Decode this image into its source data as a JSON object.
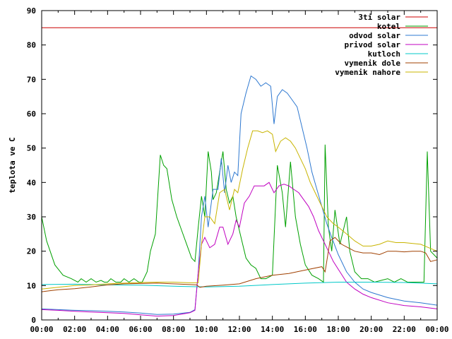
{
  "chart_data": {
    "type": "line",
    "title": "",
    "xlabel": "",
    "ylabel": "teplota ve C",
    "xlim": [
      0,
      24
    ],
    "ylim": [
      0,
      90
    ],
    "grid": false,
    "legend_position": "top-right",
    "x_tick_labels": [
      "00:00",
      "02:00",
      "04:00",
      "06:00",
      "08:00",
      "10:00",
      "12:00",
      "14:00",
      "16:00",
      "18:00",
      "20:00",
      "22:00",
      "00:00"
    ],
    "y_tick_labels": [
      "0",
      "10",
      "20",
      "30",
      "40",
      "50",
      "60",
      "70",
      "80",
      "90"
    ],
    "series": [
      {
        "name": "3ti solar",
        "color": "#cc0000",
        "points": [
          [
            0,
            85
          ],
          [
            24,
            85
          ]
        ]
      },
      {
        "name": "kotel",
        "color": "#00a000",
        "points": [
          [
            0,
            30
          ],
          [
            0.3,
            23
          ],
          [
            0.8,
            16
          ],
          [
            1.3,
            13
          ],
          [
            1.8,
            12
          ],
          [
            2.2,
            11
          ],
          [
            2.4,
            12
          ],
          [
            2.7,
            11
          ],
          [
            3,
            12
          ],
          [
            3.3,
            11
          ],
          [
            3.6,
            11.5
          ],
          [
            3.8,
            11
          ],
          [
            4.0,
            11
          ],
          [
            4.2,
            12
          ],
          [
            4.5,
            11
          ],
          [
            4.8,
            11
          ],
          [
            5.0,
            12
          ],
          [
            5.3,
            11
          ],
          [
            5.6,
            12
          ],
          [
            5.9,
            11
          ],
          [
            6.1,
            11
          ],
          [
            6.4,
            14
          ],
          [
            6.6,
            20
          ],
          [
            6.9,
            25
          ],
          [
            7.2,
            48
          ],
          [
            7.4,
            45
          ],
          [
            7.6,
            44
          ],
          [
            7.9,
            35
          ],
          [
            8.2,
            30
          ],
          [
            8.5,
            26
          ],
          [
            8.8,
            22
          ],
          [
            9.1,
            18
          ],
          [
            9.3,
            17
          ],
          [
            9.5,
            27
          ],
          [
            9.7,
            36
          ],
          [
            9.9,
            30
          ],
          [
            10.1,
            49
          ],
          [
            10.3,
            43
          ],
          [
            10.4,
            35
          ],
          [
            10.6,
            37
          ],
          [
            10.8,
            43
          ],
          [
            11.0,
            49
          ],
          [
            11.2,
            38
          ],
          [
            11.4,
            34
          ],
          [
            11.6,
            36
          ],
          [
            11.8,
            30
          ],
          [
            12.1,
            24
          ],
          [
            12.4,
            18
          ],
          [
            12.7,
            16
          ],
          [
            13.0,
            15
          ],
          [
            13.3,
            12
          ],
          [
            13.6,
            12
          ],
          [
            14.0,
            13
          ],
          [
            14.3,
            45
          ],
          [
            14.6,
            37
          ],
          [
            14.8,
            27
          ],
          [
            15.1,
            46
          ],
          [
            15.4,
            30
          ],
          [
            15.7,
            22
          ],
          [
            16.0,
            16
          ],
          [
            16.4,
            13
          ],
          [
            16.8,
            12
          ],
          [
            17.1,
            11
          ],
          [
            17.2,
            51
          ],
          [
            17.4,
            27
          ],
          [
            17.6,
            20
          ],
          [
            17.8,
            32
          ],
          [
            18.1,
            22
          ],
          [
            18.3,
            26
          ],
          [
            18.5,
            30
          ],
          [
            18.7,
            20
          ],
          [
            19.0,
            14
          ],
          [
            19.4,
            12
          ],
          [
            19.8,
            12
          ],
          [
            20.2,
            11
          ],
          [
            20.6,
            11.5
          ],
          [
            21.0,
            12
          ],
          [
            21.4,
            11
          ],
          [
            21.8,
            12
          ],
          [
            22.2,
            11
          ],
          [
            22.6,
            11
          ],
          [
            23.0,
            11
          ],
          [
            23.2,
            11
          ],
          [
            23.4,
            49
          ],
          [
            23.6,
            20
          ],
          [
            24,
            18
          ]
        ]
      },
      {
        "name": "odvod solar",
        "color": "#2e78d0",
        "points": [
          [
            0,
            3.2
          ],
          [
            1,
            3
          ],
          [
            2,
            2.8
          ],
          [
            3,
            2.7
          ],
          [
            4,
            2.5
          ],
          [
            5,
            2.3
          ],
          [
            6,
            2
          ],
          [
            7,
            1.6
          ],
          [
            8,
            1.7
          ],
          [
            9,
            2.2
          ],
          [
            9.3,
            3
          ],
          [
            9.5,
            14
          ],
          [
            9.7,
            30
          ],
          [
            9.9,
            36
          ],
          [
            10.1,
            27
          ],
          [
            10.4,
            38
          ],
          [
            10.7,
            38
          ],
          [
            10.9,
            47
          ],
          [
            11.1,
            37
          ],
          [
            11.3,
            45
          ],
          [
            11.5,
            40
          ],
          [
            11.7,
            43
          ],
          [
            11.9,
            42
          ],
          [
            12.1,
            60
          ],
          [
            12.4,
            66
          ],
          [
            12.7,
            71
          ],
          [
            13.0,
            70
          ],
          [
            13.3,
            68
          ],
          [
            13.6,
            69
          ],
          [
            13.9,
            68
          ],
          [
            14.1,
            57
          ],
          [
            14.3,
            65
          ],
          [
            14.6,
            67
          ],
          [
            14.9,
            66
          ],
          [
            15.2,
            64
          ],
          [
            15.5,
            62
          ],
          [
            15.8,
            56
          ],
          [
            16.1,
            50
          ],
          [
            16.4,
            43
          ],
          [
            16.7,
            38
          ],
          [
            17.0,
            33
          ],
          [
            17.3,
            28
          ],
          [
            17.6,
            24
          ],
          [
            18.0,
            19
          ],
          [
            18.5,
            14
          ],
          [
            19,
            11
          ],
          [
            19.5,
            9
          ],
          [
            20,
            8
          ],
          [
            21,
            6.5
          ],
          [
            22,
            5.5
          ],
          [
            23,
            5
          ],
          [
            24,
            4.3
          ]
        ]
      },
      {
        "name": "privod solar",
        "color": "#c000c0",
        "points": [
          [
            0,
            3
          ],
          [
            1,
            2.8
          ],
          [
            2,
            2.5
          ],
          [
            3,
            2.3
          ],
          [
            4,
            2.1
          ],
          [
            5,
            1.9
          ],
          [
            6,
            1.5
          ],
          [
            7,
            1.1
          ],
          [
            8,
            1.3
          ],
          [
            9,
            2.1
          ],
          [
            9.3,
            2.8
          ],
          [
            9.5,
            14
          ],
          [
            9.7,
            22
          ],
          [
            9.9,
            24
          ],
          [
            10.2,
            21
          ],
          [
            10.5,
            22
          ],
          [
            10.8,
            27
          ],
          [
            11.0,
            27
          ],
          [
            11.3,
            22
          ],
          [
            11.6,
            25
          ],
          [
            11.8,
            29
          ],
          [
            12.0,
            27
          ],
          [
            12.3,
            34
          ],
          [
            12.6,
            36
          ],
          [
            12.9,
            39
          ],
          [
            13.2,
            39
          ],
          [
            13.5,
            39
          ],
          [
            13.8,
            40
          ],
          [
            14.1,
            37
          ],
          [
            14.4,
            39
          ],
          [
            14.7,
            39.5
          ],
          [
            15.0,
            39
          ],
          [
            15.3,
            38
          ],
          [
            15.6,
            37
          ],
          [
            15.9,
            35
          ],
          [
            16.2,
            33
          ],
          [
            16.5,
            30
          ],
          [
            16.8,
            26
          ],
          [
            17.1,
            23
          ],
          [
            17.4,
            20
          ],
          [
            17.7,
            17
          ],
          [
            18.1,
            14
          ],
          [
            18.5,
            11
          ],
          [
            19,
            9
          ],
          [
            19.5,
            7.5
          ],
          [
            20,
            6.5
          ],
          [
            21,
            5
          ],
          [
            22,
            4.2
          ],
          [
            23,
            3.8
          ],
          [
            24,
            3.2
          ]
        ]
      },
      {
        "name": "kutloch",
        "color": "#00c8c8",
        "points": [
          [
            0,
            10.3
          ],
          [
            2,
            10.4
          ],
          [
            4,
            10.2
          ],
          [
            6,
            10.1
          ],
          [
            8,
            9.8
          ],
          [
            10,
            9.6
          ],
          [
            12,
            9.8
          ],
          [
            14,
            10.3
          ],
          [
            16,
            10.7
          ],
          [
            18,
            11
          ],
          [
            20,
            11
          ],
          [
            22,
            10.9
          ],
          [
            24,
            10.5
          ]
        ]
      },
      {
        "name": "vymenik dole",
        "color": "#a04000",
        "points": [
          [
            0,
            8.2
          ],
          [
            0.5,
            8.5
          ],
          [
            1,
            8.8
          ],
          [
            2,
            9.1
          ],
          [
            3,
            9.6
          ],
          [
            4,
            10.2
          ],
          [
            5,
            10.5
          ],
          [
            6,
            10.6
          ],
          [
            7,
            10.7
          ],
          [
            8,
            10.5
          ],
          [
            9,
            10.3
          ],
          [
            9.4,
            10.2
          ],
          [
            9.6,
            9.5
          ],
          [
            10,
            9.8
          ],
          [
            11,
            10.1
          ],
          [
            12,
            10.5
          ],
          [
            13,
            12
          ],
          [
            14,
            13
          ],
          [
            15,
            13.5
          ],
          [
            16,
            14.5
          ],
          [
            17,
            15.5
          ],
          [
            17.2,
            14
          ],
          [
            17.5,
            23
          ],
          [
            17.8,
            24
          ],
          [
            18.2,
            22
          ],
          [
            18.6,
            21
          ],
          [
            19,
            20
          ],
          [
            19.5,
            19.5
          ],
          [
            20,
            19.5
          ],
          [
            20.5,
            19
          ],
          [
            21,
            20
          ],
          [
            21.5,
            20
          ],
          [
            22,
            19.8
          ],
          [
            22.5,
            20
          ],
          [
            23,
            20
          ],
          [
            23.3,
            19.5
          ],
          [
            23.6,
            17
          ],
          [
            24,
            17.5
          ]
        ]
      },
      {
        "name": "vymenik nahore",
        "color": "#c8b400",
        "points": [
          [
            0,
            9
          ],
          [
            1,
            9.5
          ],
          [
            2,
            10
          ],
          [
            3,
            10.2
          ],
          [
            4,
            10.5
          ],
          [
            5,
            10.7
          ],
          [
            6,
            10.9
          ],
          [
            7,
            11
          ],
          [
            8,
            11
          ],
          [
            9,
            10.8
          ],
          [
            9.5,
            10.8
          ],
          [
            9.7,
            22
          ],
          [
            9.9,
            30
          ],
          [
            10.2,
            30
          ],
          [
            10.5,
            28
          ],
          [
            10.8,
            37
          ],
          [
            11.1,
            38
          ],
          [
            11.4,
            32
          ],
          [
            11.7,
            38
          ],
          [
            11.9,
            37
          ],
          [
            12.2,
            44
          ],
          [
            12.5,
            50
          ],
          [
            12.8,
            55
          ],
          [
            13.1,
            55
          ],
          [
            13.4,
            54.5
          ],
          [
            13.7,
            55
          ],
          [
            14.0,
            54
          ],
          [
            14.2,
            49
          ],
          [
            14.5,
            52
          ],
          [
            14.8,
            53
          ],
          [
            15.1,
            52
          ],
          [
            15.4,
            50
          ],
          [
            15.7,
            47
          ],
          [
            16.0,
            44
          ],
          [
            16.3,
            40
          ],
          [
            16.6,
            37
          ],
          [
            17.0,
            33
          ],
          [
            17.3,
            30
          ],
          [
            17.7,
            28
          ],
          [
            18.0,
            27
          ],
          [
            18.5,
            25
          ],
          [
            19,
            23
          ],
          [
            19.5,
            21.5
          ],
          [
            20,
            21.5
          ],
          [
            20.5,
            22
          ],
          [
            21,
            23
          ],
          [
            21.5,
            22.5
          ],
          [
            22,
            22.5
          ],
          [
            23,
            22
          ],
          [
            23.5,
            21
          ],
          [
            24,
            20
          ]
        ]
      }
    ]
  }
}
